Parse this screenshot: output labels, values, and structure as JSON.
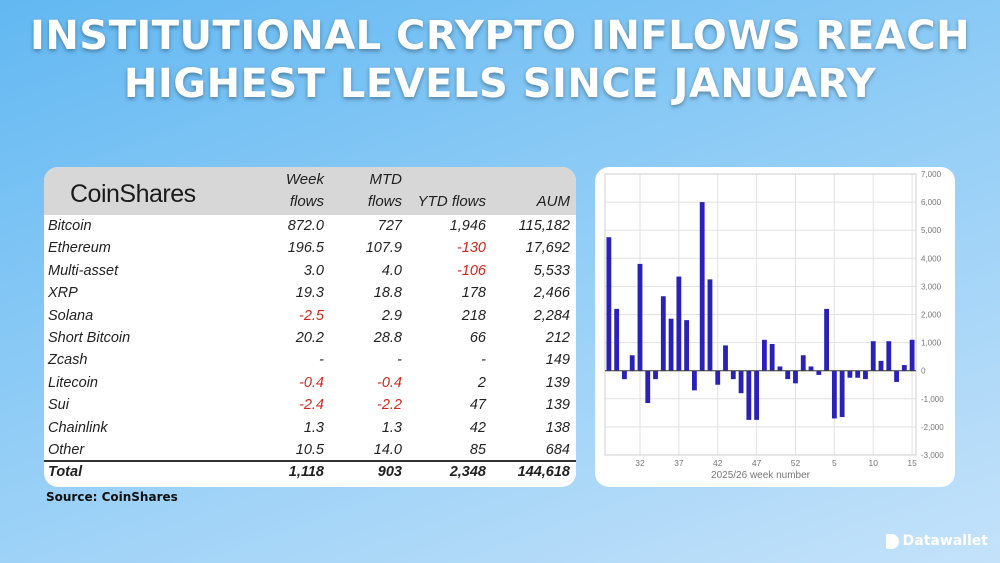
{
  "headline": {
    "line1": "INSTITUTIONAL CRYPTO INFLOWS REACH",
    "line2": "HIGHEST LEVELS SINCE JANUARY"
  },
  "table": {
    "logo_text": "CoinShares",
    "headers": {
      "week_line1": "Week",
      "week_line2": "flows",
      "mtd_line1": "MTD",
      "mtd_line2": "flows",
      "ytd": "YTD flows",
      "aum": "AUM"
    },
    "rows": [
      {
        "name": "Bitcoin",
        "week": "872.0",
        "mtd": "727",
        "ytd": "1,946",
        "aum": "115,182"
      },
      {
        "name": "Ethereum",
        "week": "196.5",
        "mtd": "107.9",
        "ytd": "-130",
        "aum": "17,692"
      },
      {
        "name": "Multi-asset",
        "week": "3.0",
        "mtd": "4.0",
        "ytd": "-106",
        "aum": "5,533"
      },
      {
        "name": "XRP",
        "week": "19.3",
        "mtd": "18.8",
        "ytd": "178",
        "aum": "2,466"
      },
      {
        "name": "Solana",
        "week": "-2.5",
        "mtd": "2.9",
        "ytd": "218",
        "aum": "2,284"
      },
      {
        "name": "Short Bitcoin",
        "week": "20.2",
        "mtd": "28.8",
        "ytd": "66",
        "aum": "212"
      },
      {
        "name": "Zcash",
        "week": "-",
        "mtd": "-",
        "ytd": "-",
        "aum": "149"
      },
      {
        "name": "Litecoin",
        "week": "-0.4",
        "mtd": "-0.4",
        "ytd": "2",
        "aum": "139"
      },
      {
        "name": "Sui",
        "week": "-2.4",
        "mtd": "-2.2",
        "ytd": "47",
        "aum": "139"
      },
      {
        "name": "Chainlink",
        "week": "1.3",
        "mtd": "1.3",
        "ytd": "42",
        "aum": "138"
      },
      {
        "name": "Other",
        "week": "10.5",
        "mtd": "14.0",
        "ytd": "85",
        "aum": "684"
      }
    ],
    "total": {
      "name": "Total",
      "week": "1,118",
      "mtd": "903",
      "ytd": "2,348",
      "aum": "144,618"
    }
  },
  "source": "Source: CoinShares",
  "brand": "Datawallet",
  "colors": {
    "negative": "#d0261c",
    "bar": "#2a22b8"
  },
  "chart_data": {
    "type": "bar",
    "title": "",
    "xlabel": "2025/26 week number",
    "ylabel": "",
    "ylim": [
      -3000,
      7000
    ],
    "yticks": [
      -3000,
      -2000,
      -1000,
      0,
      1000,
      2000,
      3000,
      4000,
      5000,
      6000,
      7000
    ],
    "ytick_labels": [
      "-3,000",
      "-2,000",
      "-1,000",
      "0",
      "1,000",
      "2,000",
      "3,000",
      "4,000",
      "5,000",
      "6,000",
      "7,000"
    ],
    "xticks": [
      "32",
      "37",
      "42",
      "47",
      "52",
      "5",
      "10",
      "15"
    ],
    "categories": [
      "28",
      "29",
      "30",
      "31",
      "32",
      "33",
      "34",
      "35",
      "36",
      "37",
      "38",
      "39",
      "40",
      "41",
      "42",
      "43",
      "44",
      "45",
      "46",
      "47",
      "48",
      "49",
      "50",
      "51",
      "52",
      "1",
      "2",
      "3",
      "4",
      "5",
      "6",
      "7",
      "8",
      "9",
      "10",
      "11",
      "12",
      "13",
      "14",
      "15"
    ],
    "values": [
      4750,
      2200,
      -300,
      550,
      3800,
      -1150,
      -300,
      2650,
      1850,
      3350,
      1800,
      -700,
      6000,
      3250,
      -500,
      900,
      -300,
      -800,
      -1750,
      -1750,
      1100,
      950,
      150,
      -300,
      -450,
      550,
      150,
      -150,
      2200,
      -1700,
      -1650,
      -250,
      -250,
      -300,
      1050,
      350,
      1050,
      -400,
      200,
      1100
    ]
  }
}
